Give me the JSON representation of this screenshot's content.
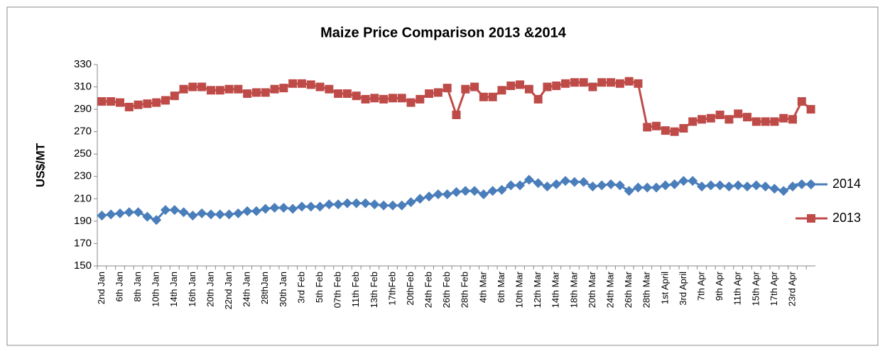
{
  "chart_data": {
    "type": "line",
    "title": "Maize Price Comparison 2013 &2014",
    "y_label": "US$/MT",
    "categories": [
      "2nd Jan",
      null,
      "6th Jan",
      null,
      "8th Jan",
      null,
      "10th Jan",
      null,
      "14th Jan",
      null,
      "16th Jan",
      null,
      "20th Jan",
      null,
      "22nd Jan",
      null,
      "24th Jan",
      null,
      "28thJan",
      null,
      "30th Jan",
      null,
      "3rd Feb",
      null,
      "5th Feb",
      null,
      "07th Feb",
      null,
      "11th Feb",
      null,
      "13th Feb",
      null,
      "17thFeb",
      null,
      "20thFeb",
      null,
      "24th Feb",
      null,
      "26th Feb",
      null,
      "28th Feb",
      null,
      "4th Mar",
      null,
      "6th Mar",
      null,
      "10th Mar",
      null,
      "12th Mar",
      null,
      "14th Mar",
      null,
      "18th Mar",
      null,
      "20th Mar",
      null,
      "24th Mar",
      null,
      "26th Mar",
      null,
      "28th Mar",
      null,
      "1st April",
      null,
      "3rd April",
      null,
      "7th Apr",
      null,
      "9th Apr",
      null,
      "11th Apr",
      null,
      "15th Apr",
      null,
      "17th Apr",
      null,
      "23rd Apr",
      null,
      null
    ],
    "series": [
      {
        "name": "2014",
        "color": "#4a7ebb",
        "marker": "diamond",
        "values": [
          195,
          196,
          197,
          198,
          198,
          194,
          191,
          200,
          200,
          198,
          195,
          197,
          196,
          196,
          196,
          197,
          199,
          199,
          201,
          202,
          202,
          201,
          203,
          203,
          203,
          205,
          205,
          206,
          206,
          206,
          205,
          204,
          204,
          204,
          207,
          210,
          212,
          214,
          214,
          216,
          217,
          217,
          214,
          217,
          218,
          222,
          222,
          227,
          224,
          221,
          223,
          226,
          225,
          225,
          221,
          222,
          223,
          222,
          217,
          220,
          220,
          220,
          222,
          223,
          226,
          226,
          221,
          222,
          222,
          221,
          222,
          221,
          222,
          221,
          219,
          217,
          221,
          223,
          223
        ]
      },
      {
        "name": "2013",
        "color": "#be4b48",
        "marker": "square",
        "values": [
          297,
          297,
          296,
          292,
          294,
          295,
          296,
          298,
          302,
          308,
          310,
          310,
          307,
          307,
          308,
          308,
          304,
          305,
          305,
          308,
          309,
          313,
          313,
          312,
          310,
          308,
          304,
          304,
          302,
          299,
          300,
          299,
          300,
          300,
          296,
          299,
          304,
          305,
          309,
          285,
          308,
          310,
          301,
          301,
          307,
          311,
          312,
          308,
          299,
          310,
          311,
          313,
          314,
          314,
          310,
          314,
          314,
          313,
          315,
          313,
          274,
          275,
          271,
          270,
          273,
          279,
          281,
          282,
          285,
          281,
          286,
          283,
          279,
          279,
          279,
          282,
          281,
          297,
          290
        ]
      }
    ],
    "ylim": [
      150,
      330
    ],
    "yticks": [
      150,
      170,
      190,
      210,
      230,
      250,
      270,
      290,
      310,
      330
    ],
    "grid": false,
    "legend": "right"
  }
}
